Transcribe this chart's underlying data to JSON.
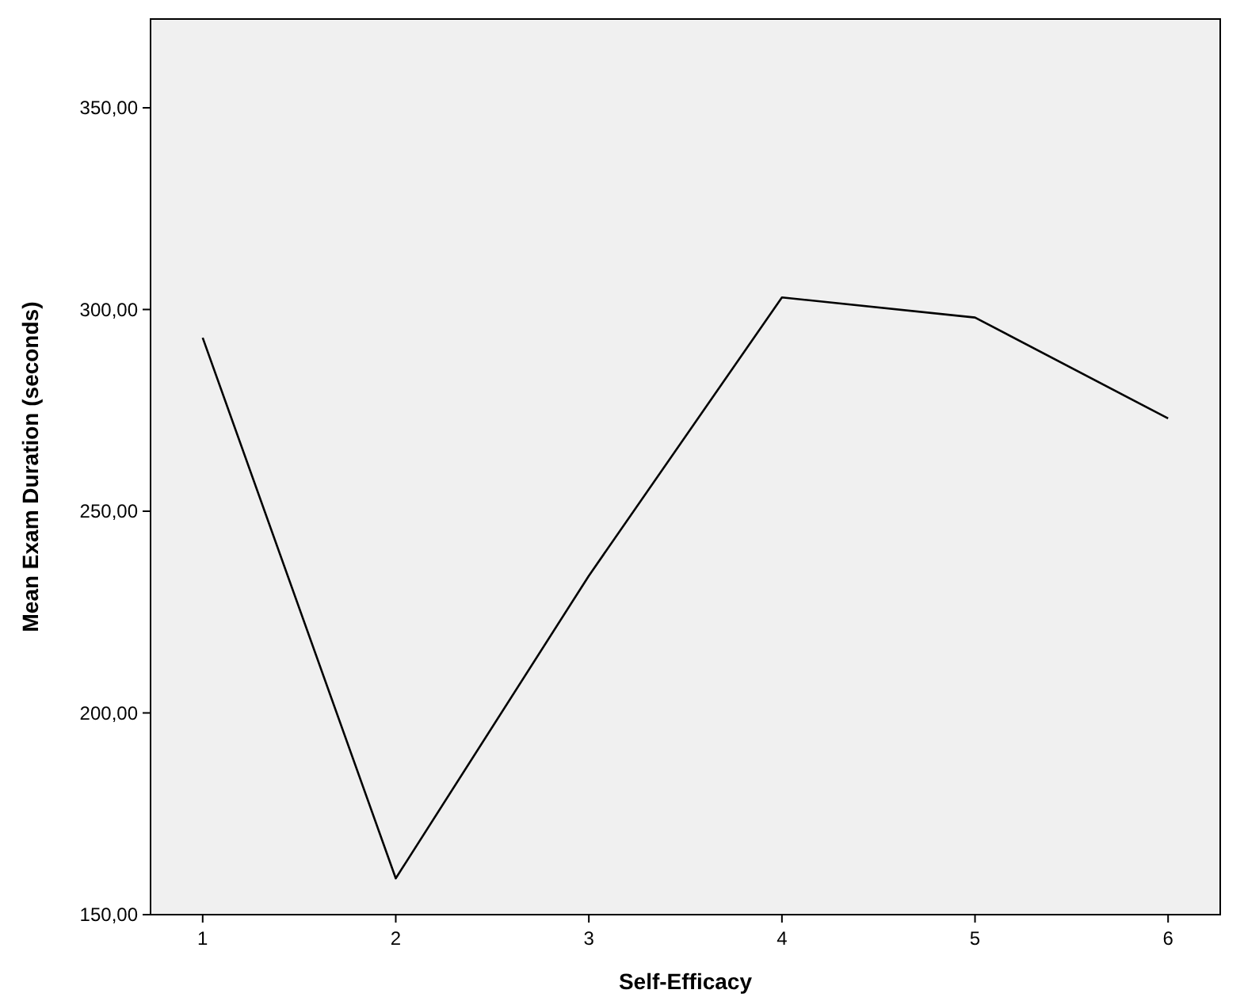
{
  "chart_data": {
    "type": "line",
    "xlabel": "Self-Efficacy",
    "ylabel": "Mean Exam Duration (seconds)",
    "categories": [
      "1",
      "2",
      "3",
      "4",
      "5",
      "6"
    ],
    "series": [
      {
        "color": "#000000",
        "values": [
          293,
          159,
          234,
          303,
          298,
          273
        ]
      }
    ],
    "ylim": [
      150,
      372
    ],
    "yticks": [
      {
        "value": 150,
        "label": "150,00"
      },
      {
        "value": 200,
        "label": "200,00"
      },
      {
        "value": 250,
        "label": "250,00"
      },
      {
        "value": 300,
        "label": "300,00"
      },
      {
        "value": 350,
        "label": "350,00"
      }
    ],
    "grid": false,
    "marker": "none",
    "line_style": "solid"
  }
}
